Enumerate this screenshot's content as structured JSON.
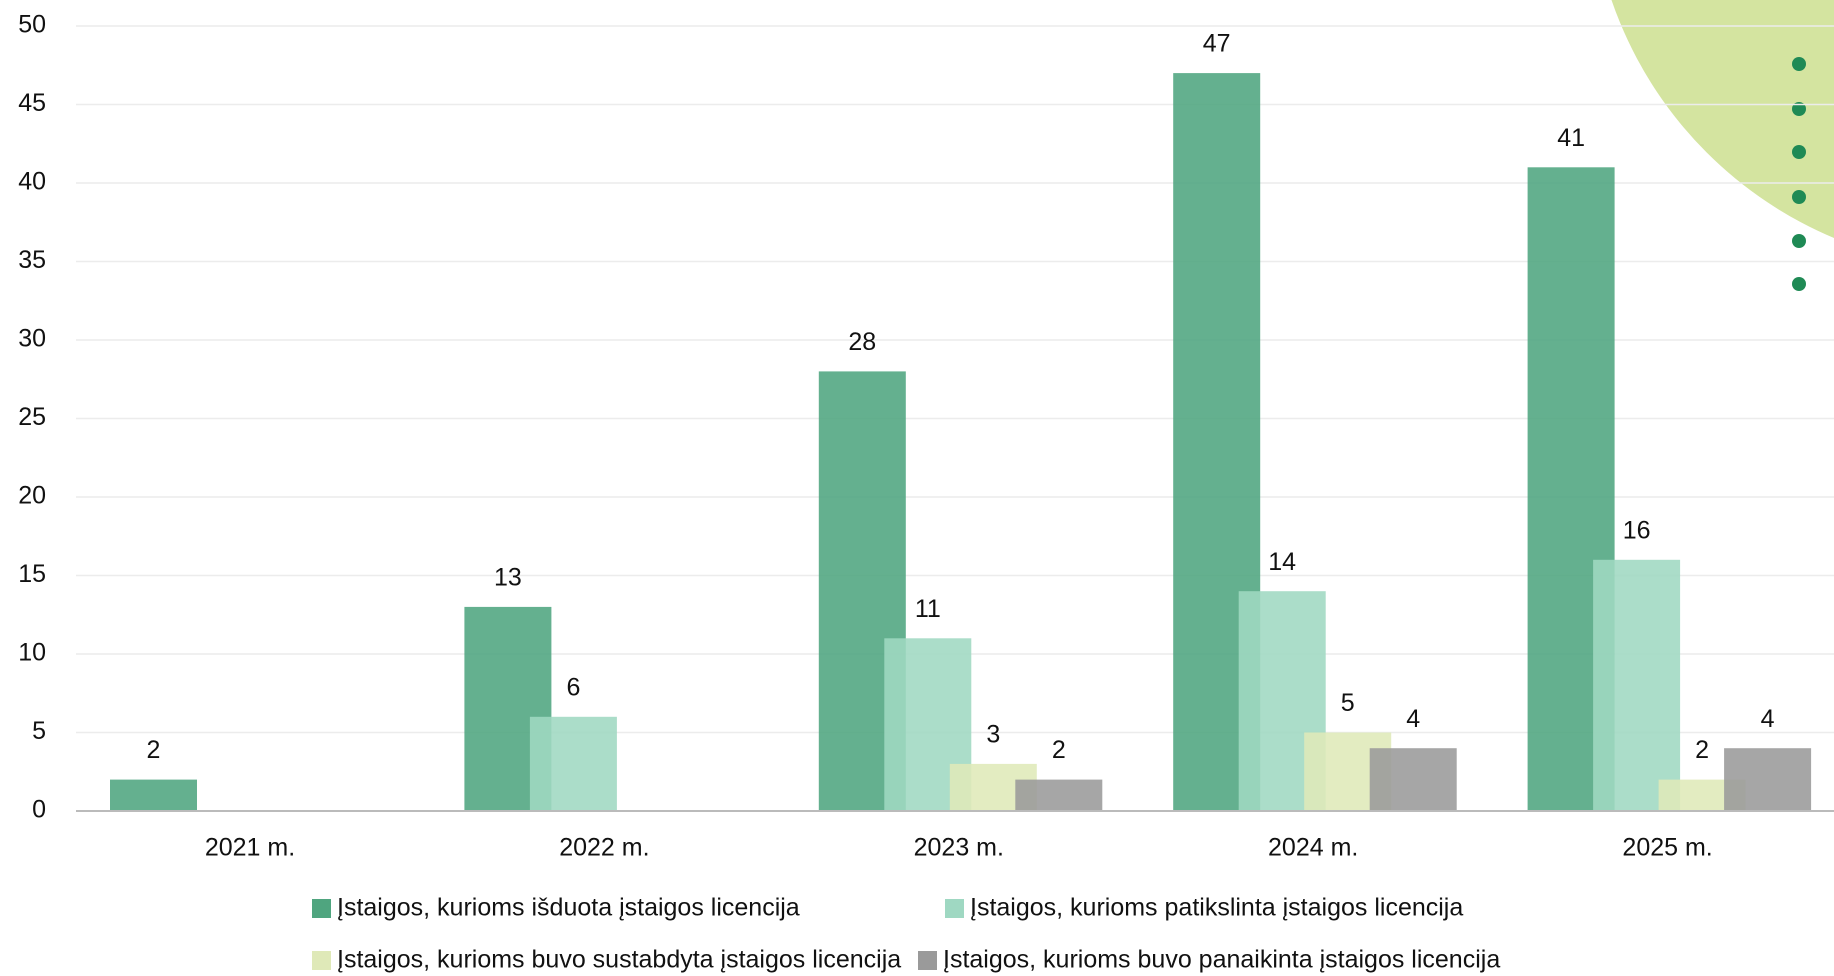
{
  "chart_data": {
    "type": "bar",
    "categories": [
      "2021 m.",
      "2022 m.",
      "2023 m.",
      "2024 m.",
      "2025 m."
    ],
    "series": [
      {
        "name": "Įstaigos, kurioms išduota įstaigos licencija",
        "color": "#4fa57f",
        "values": [
          2,
          13,
          28,
          47,
          41
        ]
      },
      {
        "name": "Įstaigos, kurioms patikslinta įstaigos licencija",
        "color": "#9fd8c2",
        "values": [
          null,
          6,
          11,
          14,
          16
        ]
      },
      {
        "name": "Įstaigos, kurioms buvo sustabdyta įstaigos licencija",
        "color": "#dfe9b8",
        "values": [
          null,
          null,
          3,
          5,
          2
        ]
      },
      {
        "name": "Įstaigos, kurioms buvo panaikinta įstaigos licencija",
        "color": "#9a9a9a",
        "values": [
          null,
          null,
          2,
          4,
          4
        ]
      }
    ],
    "ylim": [
      0,
      50
    ],
    "yticks": [
      0,
      5,
      10,
      15,
      20,
      25,
      30,
      35,
      40,
      45,
      50
    ],
    "grid": true,
    "legend": "bottom"
  }
}
